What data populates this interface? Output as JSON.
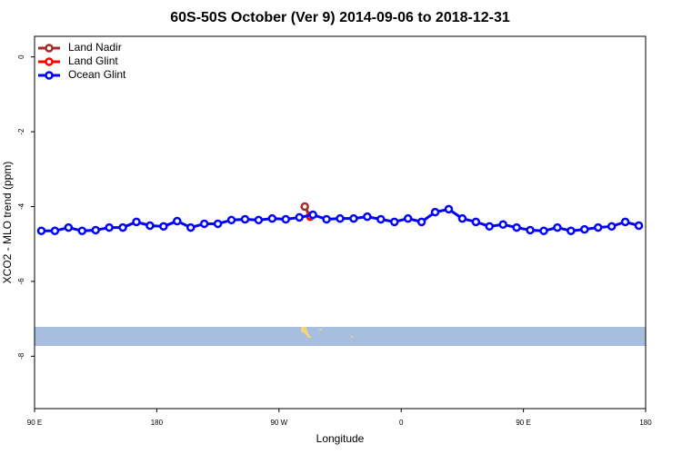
{
  "chart_data": {
    "type": "line",
    "title": "60S-50S October (Ver 9)   2014-09-06 to 2018-12-31",
    "x_label": "Longitude",
    "y_label": "XCO2 - MLO trend (ppm)",
    "xlim": [
      90,
      540
    ],
    "xticks": [
      {
        "value": 90,
        "label": "90 E"
      },
      180,
      {
        "value": 270,
        "label": "90 W"
      },
      {
        "value": 360,
        "label": "0"
      },
      {
        "value": 450,
        "label": "90 E"
      },
      {
        "value": 540,
        "label": "180"
      }
    ],
    "ylim": [
      -9.4,
      0.55
    ],
    "yticks": [
      0,
      -2,
      -4,
      -6,
      -8
    ],
    "legend": "top-left",
    "series": [
      {
        "name": "Land Nadir",
        "color": "#a52a2a",
        "x": [
          289,
          293
        ],
        "values": [
          -4.0,
          -4.27
        ]
      },
      {
        "name": "Land Glint",
        "color": "#ff0000",
        "x": [
          293
        ],
        "values": [
          -4.25
        ]
      },
      {
        "name": "Ocean Glint",
        "color": "#0000ff",
        "x": [
          95,
          105,
          115,
          125,
          135,
          145,
          155,
          165,
          175,
          185,
          195,
          205,
          215,
          225,
          235,
          245,
          255,
          265,
          275,
          285,
          295,
          305,
          315,
          325,
          335,
          345,
          355,
          365,
          375,
          385,
          395,
          405,
          415,
          425,
          435,
          445,
          455,
          465,
          475,
          485,
          495,
          505,
          515,
          525,
          535
        ],
        "values": [
          -4.65,
          -4.65,
          -4.56,
          -4.65,
          -4.63,
          -4.56,
          -4.56,
          -4.41,
          -4.51,
          -4.53,
          -4.39,
          -4.56,
          -4.46,
          -4.46,
          -4.36,
          -4.34,
          -4.36,
          -4.32,
          -4.34,
          -4.29,
          -4.22,
          -4.34,
          -4.32,
          -4.32,
          -4.27,
          -4.34,
          -4.41,
          -4.32,
          -4.41,
          -4.15,
          -4.07,
          -4.32,
          -4.41,
          -4.53,
          -4.48,
          -4.56,
          -4.63,
          -4.65,
          -4.56,
          -4.65,
          -4.61,
          -4.56,
          -4.53,
          -4.41,
          -4.51
        ]
      }
    ]
  }
}
